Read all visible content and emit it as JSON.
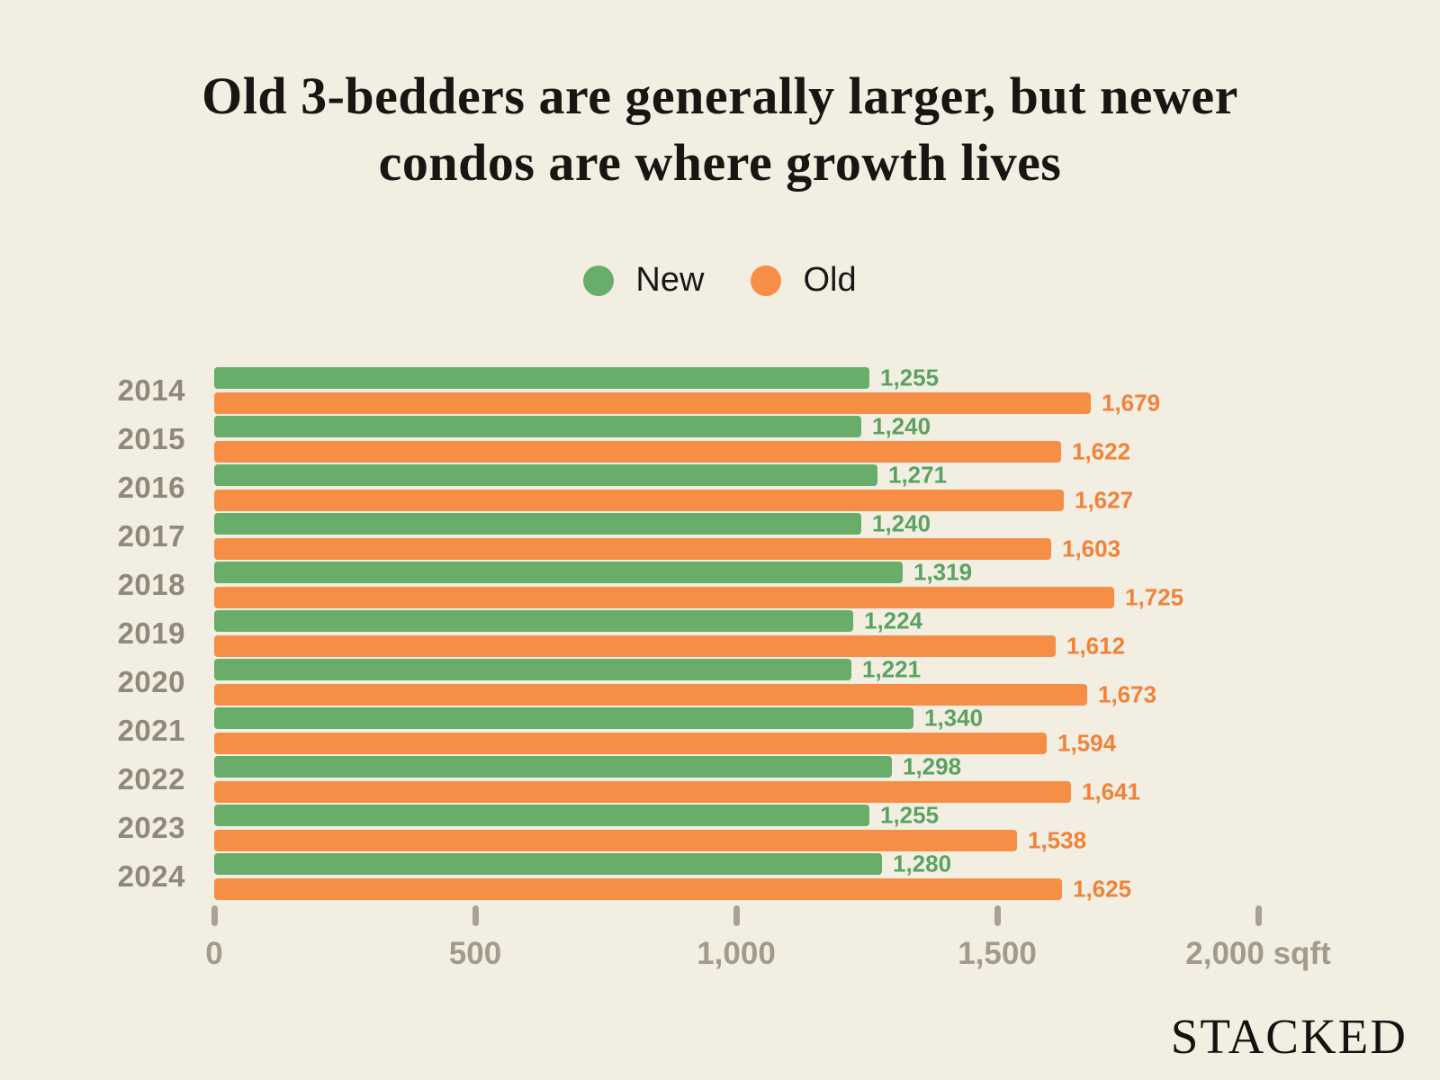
{
  "title": {
    "line1": "Old 3-bedders are generally larger, but newer",
    "line2": "condos are where growth lives"
  },
  "legend": {
    "items": [
      {
        "label": "New",
        "color": "#69AD6B"
      },
      {
        "label": "Old",
        "color": "#F78E46"
      }
    ]
  },
  "chart_data": {
    "type": "bar",
    "orientation": "horizontal",
    "title": "Old 3-bedders are generally larger, but newer condos are where growth lives",
    "categories": [
      "2014",
      "2015",
      "2016",
      "2017",
      "2018",
      "2019",
      "2020",
      "2021",
      "2022",
      "2023",
      "2024"
    ],
    "series": [
      {
        "name": "New",
        "color": "#69AD6B",
        "label_color": "#5BA261",
        "values": [
          1255,
          1240,
          1271,
          1240,
          1319,
          1224,
          1221,
          1340,
          1298,
          1255,
          1280
        ]
      },
      {
        "name": "Old",
        "color": "#F78E46",
        "label_color": "#F0823A",
        "values": [
          1679,
          1622,
          1627,
          1603,
          1725,
          1612,
          1673,
          1594,
          1641,
          1538,
          1625
        ]
      }
    ],
    "xlabel": "sqft",
    "xlim": [
      0,
      2000
    ],
    "x_ticks": [
      {
        "value": 0,
        "label": "0"
      },
      {
        "value": 500,
        "label": "500"
      },
      {
        "value": 1000,
        "label": "1,000"
      },
      {
        "value": 1500,
        "label": "1,500"
      },
      {
        "value": 2000,
        "label": "2,000 sqft"
      }
    ],
    "grid": false,
    "legend_position": "top-center",
    "value_labels": true
  },
  "colors": {
    "background": "#F2EFE2",
    "title_text": "#181512",
    "year_label": "#8E897B",
    "axis_label": "#A19B8C",
    "tick_mark": "#A8A294"
  },
  "watermark": "STACKED"
}
